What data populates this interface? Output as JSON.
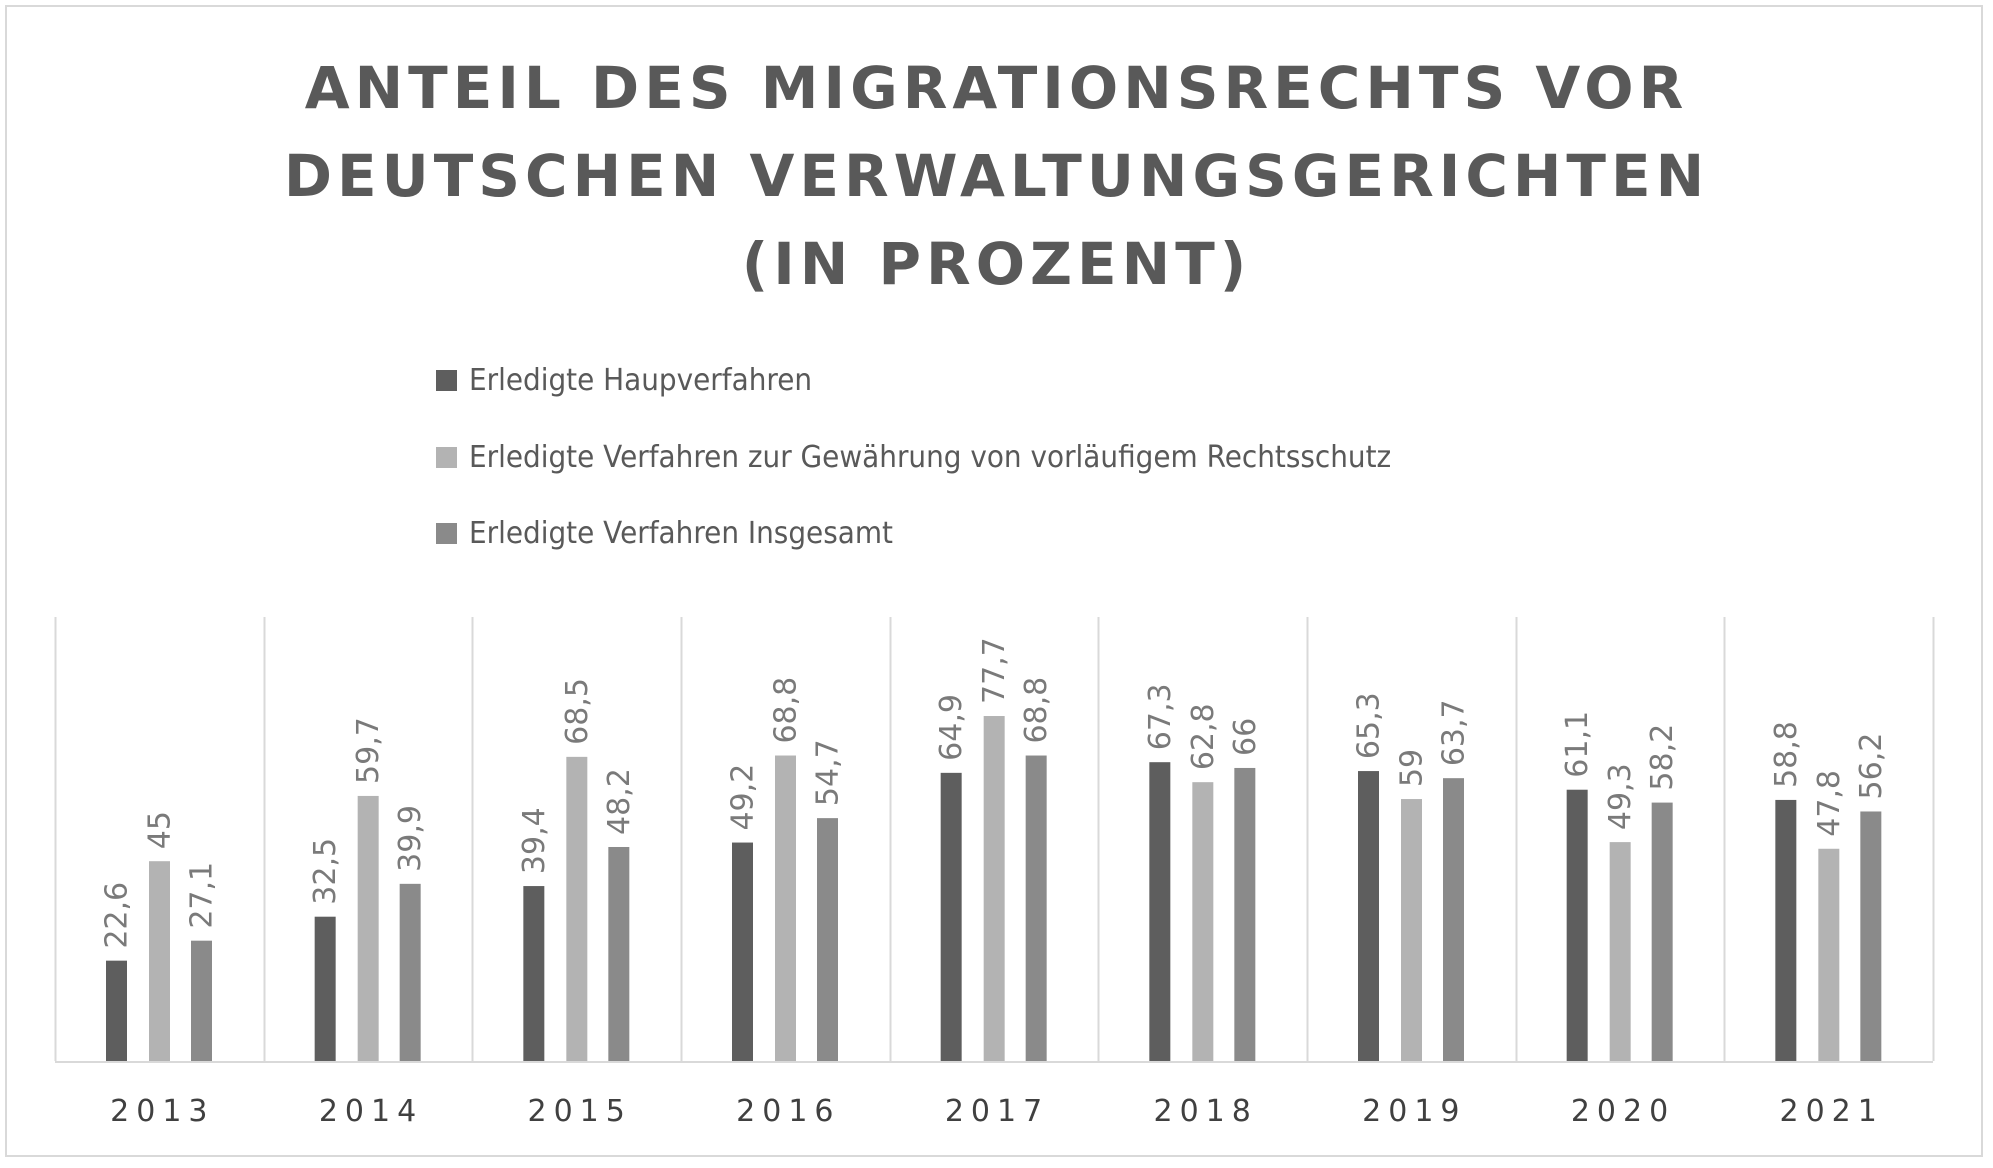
{
  "chart_data": {
    "type": "bar",
    "title_lines": [
      "ANTEIL DES MIGRATIONSRECHTS VOR",
      "DEUTSCHEN VERWALTUNGSGERICHTEN",
      "(IN PROZENT)"
    ],
    "xlabel": "",
    "ylabel": "",
    "ylim": [
      0,
      100
    ],
    "grid": "vertical category separators",
    "legend_position": "top-left",
    "categories": [
      "2013",
      "2014",
      "2015",
      "2016",
      "2017",
      "2018",
      "2019",
      "2020",
      "2021"
    ],
    "series": [
      {
        "name": "Erledigte Haupverfahren",
        "color": "#5e5e5e",
        "values": [
          22.6,
          32.5,
          39.4,
          49.2,
          64.9,
          67.3,
          65.3,
          61.1,
          58.8
        ],
        "labels": [
          "22,6",
          "32,5",
          "39,4",
          "49,2",
          "64,9",
          "67,3",
          "65,3",
          "61,1",
          "58,8"
        ]
      },
      {
        "name": "Erledigte Verfahren zur Gewährung von vorläufigem Rechtsschutz",
        "color": "#b3b3b3",
        "values": [
          45,
          59.7,
          68.5,
          68.8,
          77.7,
          62.8,
          59,
          49.3,
          47.8
        ],
        "labels": [
          "45",
          "59,7",
          "68,5",
          "68,8",
          "77,7",
          "62,8",
          "59",
          "49,3",
          "47,8"
        ]
      },
      {
        "name": "Erledigte Verfahren Insgesamt",
        "color": "#8a8a8a",
        "values": [
          27.1,
          39.9,
          48.2,
          54.7,
          68.8,
          66,
          63.7,
          58.2,
          56.2
        ],
        "labels": [
          "27,1",
          "39,9",
          "48,2",
          "54,7",
          "68,8",
          "66",
          "63,7",
          "58,2",
          "56,2"
        ]
      }
    ]
  }
}
